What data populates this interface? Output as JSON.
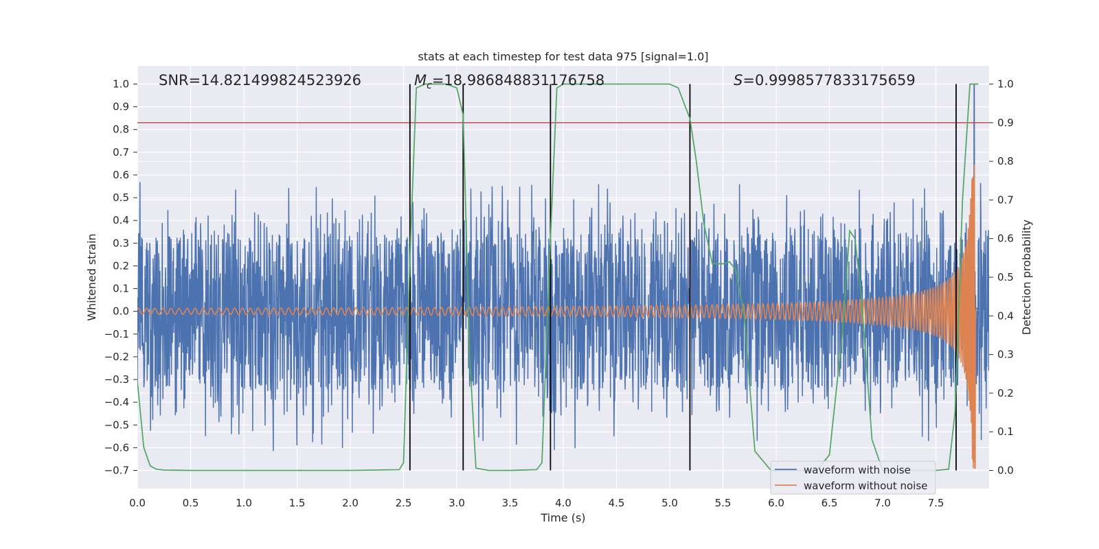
{
  "chart_data": {
    "type": "line",
    "title": "stats at each timestep for test data 975 [signal=1.0]",
    "xlabel": "Time (s)",
    "ylabel": "Whitened strain",
    "y2label": "Detection probability",
    "xlim": [
      0.0,
      8.0
    ],
    "ylim": [
      -0.78,
      1.08
    ],
    "y2lim": [
      -0.047,
      1.047
    ],
    "x_ticks": [
      "0.0",
      "0.5",
      "1.0",
      "1.5",
      "2.0",
      "2.5",
      "3.0",
      "3.5",
      "4.0",
      "4.5",
      "5.0",
      "5.5",
      "6.0",
      "6.5",
      "7.0",
      "7.5"
    ],
    "y_ticks": [
      "−0.7",
      "−0.6",
      "−0.5",
      "−0.4",
      "−0.3",
      "−0.2",
      "−0.1",
      "0.0",
      "0.1",
      "0.2",
      "0.3",
      "0.4",
      "0.5",
      "0.6",
      "0.7",
      "0.8",
      "0.9",
      "1.0"
    ],
    "y2_ticks": [
      "0.0",
      "0.1",
      "0.2",
      "0.3",
      "0.4",
      "0.5",
      "0.6",
      "0.7",
      "0.8",
      "0.9",
      "1.0"
    ],
    "grid": true,
    "legend_position": "bottom-right",
    "annotations": {
      "snr": "SNR=14.821499824523926",
      "mc_symbol": "M",
      "mc_sub": "c",
      "mc_value": "=18.986848831176758",
      "s_symbol": "S",
      "s_value": "=0.9998577833175659"
    },
    "threshold_line": {
      "axis": "y2",
      "value": 0.9,
      "color": "#c44e52"
    },
    "event_lines": [
      2.56,
      3.06,
      3.88,
      5.19,
      7.69
    ],
    "series": [
      {
        "name": "waveform with noise",
        "color": "#4c72b0",
        "kind": "noise",
        "x_range": [
          0.0,
          8.0
        ],
        "band_low": -0.31,
        "band_high": 0.32,
        "spike_max": 0.57,
        "spike_min": -0.63,
        "peak": {
          "x": 7.86,
          "y": 1.0
        }
      },
      {
        "name": "waveform without noise",
        "color": "#dd8452",
        "kind": "chirp",
        "x_range": [
          0.0,
          7.9
        ],
        "merger_time": 7.87,
        "peak_amplitude": 0.7,
        "min_amplitude": 0.012,
        "min_value": -0.69
      },
      {
        "name": "",
        "color": "#55a868",
        "axis": "y2",
        "x": [
          0.0,
          0.06,
          0.12,
          0.18,
          0.25,
          0.5,
          1.0,
          1.5,
          2.0,
          2.46,
          2.5,
          2.56,
          2.62,
          2.7,
          2.9,
          3.0,
          3.06,
          3.12,
          3.18,
          3.3,
          3.5,
          3.75,
          3.8,
          3.88,
          3.94,
          4.0,
          4.5,
          5.0,
          5.08,
          5.19,
          5.25,
          5.32,
          5.4,
          5.5,
          5.56,
          5.62,
          5.7,
          5.8,
          5.95,
          6.2,
          6.38,
          6.5,
          6.62,
          6.69,
          6.74,
          6.8,
          6.9,
          7.0,
          7.5,
          7.62,
          7.68,
          7.75,
          7.82,
          7.9
        ],
        "y": [
          0.23,
          0.06,
          0.012,
          0.003,
          0.001,
          0.0,
          0.0,
          0.0,
          0.0,
          0.002,
          0.02,
          0.55,
          0.99,
          1.0,
          1.0,
          0.99,
          0.92,
          0.3,
          0.006,
          0.0,
          0.0,
          0.002,
          0.02,
          0.6,
          0.99,
          1.0,
          1.0,
          1.0,
          0.99,
          0.91,
          0.8,
          0.64,
          0.535,
          0.535,
          0.54,
          0.52,
          0.4,
          0.05,
          0.0,
          0.0,
          0.0,
          0.04,
          0.35,
          0.62,
          0.6,
          0.45,
          0.08,
          0.0,
          0.0,
          0.003,
          0.15,
          0.7,
          1.0,
          1.0
        ]
      }
    ]
  }
}
